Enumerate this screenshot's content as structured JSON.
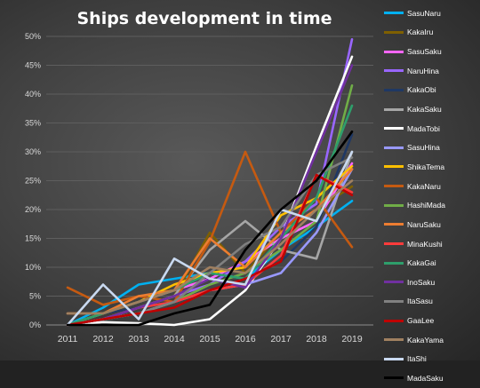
{
  "chart_data": {
    "type": "line",
    "title": "Ships development in time",
    "x": [
      2011,
      2012,
      2013,
      2014,
      2015,
      2016,
      2017,
      2018,
      2019
    ],
    "ylim": [
      0,
      50
    ],
    "yticks": [
      0,
      5,
      10,
      15,
      20,
      25,
      30,
      35,
      40,
      45,
      50
    ],
    "ytick_labels": [
      "0%",
      "5%",
      "10%",
      "15%",
      "20%",
      "25%",
      "30%",
      "35%",
      "40%",
      "45%",
      "50%"
    ],
    "xtick_labels": [
      "2011",
      "2012",
      "2013",
      "2014",
      "2015",
      "2016",
      "2017",
      "2018",
      "2019"
    ],
    "grid": true,
    "legend": "right",
    "series": [
      {
        "name": "SasuNaru",
        "color": "#00b0f0",
        "values": [
          0,
          3,
          7,
          8,
          9,
          8,
          13,
          17,
          21.5
        ]
      },
      {
        "name": "KakaIru",
        "color": "#7f6000",
        "values": [
          0,
          2,
          3,
          5,
          16,
          9,
          16,
          20,
          24
        ]
      },
      {
        "name": "SasuSaku",
        "color": "#ff66ff",
        "values": [
          0,
          2,
          4,
          6,
          8,
          11,
          15,
          18,
          28
        ]
      },
      {
        "name": "NaruHina",
        "color": "#9966ff",
        "values": [
          0,
          1,
          3,
          5,
          7,
          11,
          17,
          21,
          49.5
        ]
      },
      {
        "name": "KakaObi",
        "color": "#1f3864",
        "values": [
          0,
          2,
          3,
          4,
          6,
          8,
          11,
          17,
          33
        ]
      },
      {
        "name": "KakaSaku",
        "color": "#a6a6a6",
        "values": [
          0,
          1,
          3,
          5,
          13,
          18,
          13,
          11.5,
          30
        ]
      },
      {
        "name": "MadaTobi",
        "color": "#ffffff",
        "values": [
          0,
          0.5,
          0.3,
          0,
          1,
          6,
          15,
          31,
          46.5
        ]
      },
      {
        "name": "SasuHina",
        "color": "#9999ff",
        "values": [
          0,
          1,
          2,
          4,
          6,
          7,
          9,
          16,
          27
        ]
      },
      {
        "name": "ShikaTema",
        "color": "#ffc000",
        "values": [
          0,
          2,
          4,
          7,
          9,
          10,
          19,
          22,
          27.5
        ]
      },
      {
        "name": "KakaNaru",
        "color": "#c55a11",
        "values": [
          6.5,
          3.5,
          5,
          4,
          14.5,
          30,
          16,
          22,
          13.5
        ]
      },
      {
        "name": "HashiMada",
        "color": "#70ad47",
        "values": [
          0,
          1,
          2,
          4,
          7,
          9,
          13,
          18,
          41.5
        ]
      },
      {
        "name": "NaruSaku",
        "color": "#ed7d31",
        "values": [
          2,
          2,
          5,
          6,
          15,
          10,
          16,
          20,
          27
        ]
      },
      {
        "name": "MinaKushi",
        "color": "#ff3b3b",
        "values": [
          0,
          1,
          3,
          4,
          6,
          7,
          12,
          26,
          23
        ]
      },
      {
        "name": "KakaGai",
        "color": "#2e9e6b",
        "values": [
          0,
          2,
          4,
          6,
          9,
          8,
          15,
          22,
          38
        ]
      },
      {
        "name": "InoSaku",
        "color": "#7030a0",
        "values": [
          0,
          1,
          3,
          5,
          8,
          6.5,
          15,
          30,
          45
        ]
      },
      {
        "name": "ItaSasu",
        "color": "#808080",
        "values": [
          0,
          1,
          2,
          4,
          9,
          14,
          17,
          26,
          29
        ]
      },
      {
        "name": "GaaLee",
        "color": "#c00000",
        "values": [
          0,
          1,
          2,
          3,
          6,
          8,
          11,
          26,
          22.5
        ]
      },
      {
        "name": "KakaYama",
        "color": "#a08060",
        "values": [
          2,
          2,
          4,
          6,
          10,
          9,
          14,
          20,
          25
        ]
      },
      {
        "name": "ItaShi",
        "color": "#c9d9f0",
        "values": [
          0,
          7,
          1,
          11.5,
          8,
          7,
          20,
          18,
          30
        ]
      },
      {
        "name": "MadaSaku",
        "color": "#000000",
        "values": [
          0,
          0,
          0,
          2,
          3.5,
          13,
          20,
          25,
          33.5
        ]
      }
    ]
  }
}
